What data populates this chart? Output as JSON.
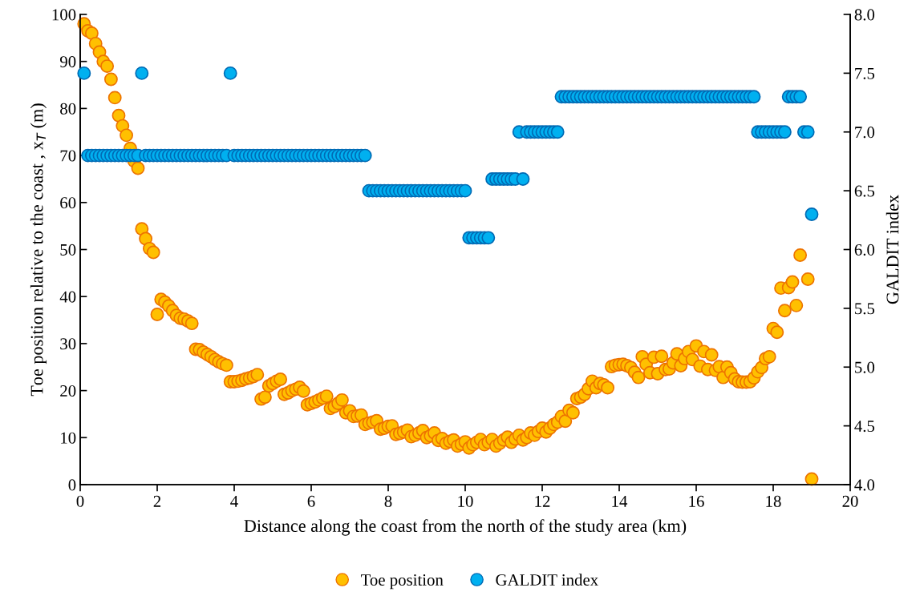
{
  "chart_data": {
    "type": "scatter",
    "xlabel": "Distance along the coast from the north of the study area (km)",
    "ylabel": "Toe position relative to the coast , x$_{T}$ (m)",
    "y2label": "GALDIT index",
    "xlim": [
      0,
      20
    ],
    "xticks": [
      0,
      2,
      4,
      6,
      8,
      10,
      12,
      14,
      16,
      18,
      20
    ],
    "ylim": [
      0,
      100
    ],
    "yticks": [
      0,
      10,
      20,
      30,
      40,
      50,
      60,
      70,
      80,
      90,
      100
    ],
    "y2lim": [
      4.0,
      8.0
    ],
    "y2ticks": [
      {
        "value": 4.0,
        "label": "4.0"
      },
      {
        "value": 4.5,
        "label": "4.5"
      },
      {
        "value": 5.0,
        "label": "5.0"
      },
      {
        "value": 5.5,
        "label": "5.5"
      },
      {
        "value": 6.0,
        "label": "6.0"
      },
      {
        "value": 6.5,
        "label": "6.5"
      },
      {
        "value": 7.0,
        "label": "7.0"
      },
      {
        "value": 7.5,
        "label": "7.5"
      },
      {
        "value": 8.0,
        "label": "8.0"
      }
    ],
    "grid": false,
    "legend": "bottom",
    "marker": "circle",
    "series": [
      {
        "name": "Toe position",
        "color": "#ffc000",
        "x": [
          0.1,
          0.2,
          0.3,
          0.4,
          0.5,
          0.6,
          0.7,
          0.8,
          0.9,
          1.0,
          1.1,
          1.2,
          1.3,
          1.4,
          1.5,
          1.6,
          1.7,
          1.8,
          1.9,
          2.0,
          2.1,
          2.2,
          2.3,
          2.4,
          2.5,
          2.6,
          2.7,
          2.8,
          2.9,
          3.0,
          3.1,
          3.2,
          3.3,
          3.4,
          3.5,
          3.6,
          3.7,
          3.8,
          3.9,
          4.0,
          4.1,
          4.2,
          4.3,
          4.4,
          4.5,
          4.6,
          4.7,
          4.8,
          4.9,
          5.0,
          5.1,
          5.2,
          5.3,
          5.4,
          5.5,
          5.6,
          5.7,
          5.8,
          5.9,
          6.0,
          6.1,
          6.2,
          6.3,
          6.4,
          6.5,
          6.6,
          6.7,
          6.8,
          6.9,
          7.0,
          7.1,
          7.2,
          7.3,
          7.4,
          7.5,
          7.6,
          7.7,
          7.8,
          7.9,
          8.0,
          8.1,
          8.2,
          8.3,
          8.4,
          8.5,
          8.6,
          8.7,
          8.8,
          8.9,
          9.0,
          9.1,
          9.2,
          9.3,
          9.4,
          9.5,
          9.6,
          9.7,
          9.8,
          9.9,
          10.0,
          10.1,
          10.2,
          10.3,
          10.4,
          10.5,
          10.6,
          10.7,
          10.8,
          10.9,
          11.0,
          11.1,
          11.2,
          11.3,
          11.4,
          11.5,
          11.6,
          11.7,
          11.8,
          11.9,
          12.0,
          12.1,
          12.2,
          12.3,
          12.4,
          12.5,
          12.6,
          12.7,
          12.8,
          12.9,
          13.0,
          13.1,
          13.2,
          13.3,
          13.4,
          13.5,
          13.6,
          13.7,
          13.8,
          13.9,
          14.0,
          14.1,
          14.2,
          14.3,
          14.4,
          14.5,
          14.6,
          14.7,
          14.8,
          14.9,
          15.0,
          15.1,
          15.2,
          15.3,
          15.4,
          15.5,
          15.6,
          15.7,
          15.8,
          15.9,
          16.0,
          16.1,
          16.2,
          16.3,
          16.4,
          16.5,
          16.6,
          16.7,
          16.8,
          16.9,
          17.0,
          17.1,
          17.2,
          17.3,
          17.4,
          17.5,
          17.6,
          17.7,
          17.8,
          17.9,
          18.0,
          18.1,
          18.2,
          18.3,
          18.4,
          18.5,
          18.6,
          18.7,
          18.9,
          19.0
        ],
        "values": [
          98,
          96.5,
          96,
          93.8,
          92,
          90,
          89,
          86.2,
          82.3,
          78.5,
          76.3,
          74.3,
          71.5,
          68.8,
          67.3,
          54.4,
          52.3,
          50.2,
          49.4,
          36.2,
          39.4,
          38.8,
          38,
          37,
          36,
          35.4,
          35.2,
          34.8,
          34.3,
          28.8,
          28.7,
          28.2,
          27.7,
          27.2,
          26.6,
          26.1,
          25.7,
          25.4,
          21.9,
          21.9,
          22,
          22.2,
          22.5,
          22.7,
          23,
          23.4,
          18.2,
          18.6,
          21,
          21.5,
          22,
          22.4,
          19.2,
          19.5,
          20,
          20.3,
          20.7,
          19.9,
          17,
          17.3,
          17.6,
          18,
          18.4,
          18.8,
          16.2,
          16.6,
          17.3,
          18,
          15.3,
          15.7,
          14.5,
          14.6,
          14.8,
          12.8,
          13.1,
          13.3,
          13.6,
          11.8,
          12,
          12.4,
          12.5,
          10.7,
          10.9,
          11.2,
          11.6,
          10.2,
          10.5,
          11,
          11.5,
          10,
          10.4,
          11,
          9.4,
          9.8,
          8.8,
          9.2,
          9.5,
          8.2,
          8.6,
          9.1,
          7.8,
          8.5,
          9,
          9.6,
          8.5,
          9,
          9.6,
          8.2,
          8.8,
          9.5,
          10.1,
          9,
          9.7,
          10.5,
          9.5,
          10,
          11,
          10.5,
          11.3,
          12,
          11.2,
          12,
          12.8,
          13.3,
          14.5,
          13.5,
          15.8,
          15.3,
          18.3,
          18.6,
          19.2,
          20.4,
          22,
          20.6,
          21.5,
          21.2,
          20.6,
          25.1,
          25.4,
          25.5,
          25.6,
          25.3,
          24.9,
          23.9,
          22.8,
          27.2,
          25.6,
          23.8,
          27.1,
          23.6,
          27.3,
          24.5,
          24.6,
          25.9,
          27.8,
          25.3,
          26.8,
          28.3,
          26.6,
          29.5,
          25.2,
          28.3,
          24.5,
          27.6,
          24.3,
          25.1,
          22.8,
          25,
          23.8,
          22.5,
          21.9,
          21.8,
          21.8,
          21.9,
          22.7,
          24,
          24.9,
          26.8,
          27.2,
          33.2,
          32.4,
          41.8,
          37,
          41.9,
          43.1,
          38.1,
          48.8,
          43.7,
          1.2
        ]
      },
      {
        "name": "GALDIT index",
        "color": "#00b0f0",
        "axis": "y2",
        "x": [
          0.1,
          0.2,
          0.3,
          0.4,
          0.5,
          0.6,
          0.7,
          0.8,
          0.9,
          1.0,
          1.1,
          1.2,
          1.3,
          1.4,
          1.5,
          1.6,
          1.7,
          1.8,
          1.9,
          2.0,
          2.1,
          2.2,
          2.3,
          2.4,
          2.5,
          2.6,
          2.7,
          2.8,
          2.9,
          3.0,
          3.1,
          3.2,
          3.3,
          3.4,
          3.5,
          3.6,
          3.7,
          3.8,
          3.9,
          4.0,
          4.1,
          4.2,
          4.3,
          4.4,
          4.5,
          4.6,
          4.7,
          4.8,
          4.9,
          5.0,
          5.1,
          5.2,
          5.3,
          5.4,
          5.5,
          5.6,
          5.7,
          5.8,
          5.9,
          6.0,
          6.1,
          6.2,
          6.3,
          6.4,
          6.5,
          6.6,
          6.7,
          6.8,
          6.9,
          7.0,
          7.1,
          7.2,
          7.3,
          7.4,
          7.5,
          7.6,
          7.7,
          7.8,
          7.9,
          8.0,
          8.1,
          8.2,
          8.3,
          8.4,
          8.5,
          8.6,
          8.7,
          8.8,
          8.9,
          9.0,
          9.1,
          9.2,
          9.3,
          9.4,
          9.5,
          9.6,
          9.7,
          9.8,
          9.9,
          10.0,
          10.1,
          10.2,
          10.3,
          10.4,
          10.5,
          10.6,
          10.7,
          10.8,
          10.9,
          11.0,
          11.1,
          11.2,
          11.3,
          11.4,
          11.5,
          11.6,
          11.7,
          11.8,
          11.9,
          12.0,
          12.1,
          12.2,
          12.3,
          12.4,
          12.5,
          12.6,
          12.7,
          12.8,
          12.9,
          13.0,
          13.1,
          13.2,
          13.3,
          13.4,
          13.5,
          13.6,
          13.7,
          13.8,
          13.9,
          14.0,
          14.1,
          14.2,
          14.3,
          14.4,
          14.5,
          14.6,
          14.7,
          14.8,
          14.9,
          15.0,
          15.1,
          15.2,
          15.3,
          15.4,
          15.5,
          15.6,
          15.7,
          15.8,
          15.9,
          16.0,
          16.1,
          16.2,
          16.3,
          16.4,
          16.5,
          16.6,
          16.7,
          16.8,
          16.9,
          17.0,
          17.1,
          17.2,
          17.3,
          17.4,
          17.5,
          17.6,
          17.7,
          17.8,
          17.9,
          18.0,
          18.1,
          18.2,
          18.3,
          18.4,
          18.5,
          18.6,
          18.7,
          18.8,
          18.9,
          19.0
        ],
        "values": [
          7.5,
          6.8,
          6.8,
          6.8,
          6.8,
          6.8,
          6.8,
          6.8,
          6.8,
          6.8,
          6.8,
          6.8,
          6.8,
          6.8,
          6.8,
          7.5,
          6.8,
          6.8,
          6.8,
          6.8,
          6.8,
          6.8,
          6.8,
          6.8,
          6.8,
          6.8,
          6.8,
          6.8,
          6.8,
          6.8,
          6.8,
          6.8,
          6.8,
          6.8,
          6.8,
          6.8,
          6.8,
          6.8,
          7.5,
          6.8,
          6.8,
          6.8,
          6.8,
          6.8,
          6.8,
          6.8,
          6.8,
          6.8,
          6.8,
          6.8,
          6.8,
          6.8,
          6.8,
          6.8,
          6.8,
          6.8,
          6.8,
          6.8,
          6.8,
          6.8,
          6.8,
          6.8,
          6.8,
          6.8,
          6.8,
          6.8,
          6.8,
          6.8,
          6.8,
          6.8,
          6.8,
          6.8,
          6.8,
          6.8,
          6.5,
          6.5,
          6.5,
          6.5,
          6.5,
          6.5,
          6.5,
          6.5,
          6.5,
          6.5,
          6.5,
          6.5,
          6.5,
          6.5,
          6.5,
          6.5,
          6.5,
          6.5,
          6.5,
          6.5,
          6.5,
          6.5,
          6.5,
          6.5,
          6.5,
          6.5,
          6.1,
          6.1,
          6.1,
          6.1,
          6.1,
          6.1,
          6.6,
          6.6,
          6.6,
          6.6,
          6.6,
          6.6,
          6.6,
          7.0,
          6.6,
          7.0,
          7.0,
          7.0,
          7.0,
          7.0,
          7.0,
          7.0,
          7.0,
          7.0,
          7.3,
          7.3,
          7.3,
          7.3,
          7.3,
          7.3,
          7.3,
          7.3,
          7.3,
          7.3,
          7.3,
          7.3,
          7.3,
          7.3,
          7.3,
          7.3,
          7.3,
          7.3,
          7.3,
          7.3,
          7.3,
          7.3,
          7.3,
          7.3,
          7.3,
          7.3,
          7.3,
          7.3,
          7.3,
          7.3,
          7.3,
          7.3,
          7.3,
          7.3,
          7.3,
          7.3,
          7.3,
          7.3,
          7.3,
          7.3,
          7.3,
          7.3,
          7.3,
          7.3,
          7.3,
          7.3,
          7.3,
          7.3,
          7.3,
          7.3,
          7.3,
          7.0,
          7.0,
          7.0,
          7.0,
          7.0,
          7.0,
          7.0,
          7.0,
          7.3,
          7.3,
          7.3,
          7.3,
          7.0,
          7.0,
          6.3
        ]
      }
    ]
  }
}
